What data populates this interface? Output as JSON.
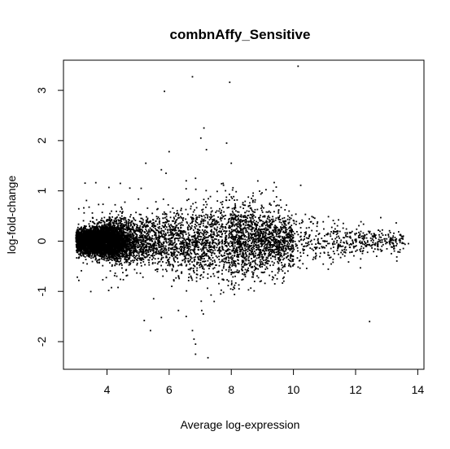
{
  "chart_data": {
    "type": "scatter",
    "title": "combnAffy_Sensitive",
    "xlabel": "Average log-expression",
    "ylabel": "log-fold-change",
    "xlim": [
      2.6,
      14.2
    ],
    "ylim": [
      -2.55,
      3.6
    ],
    "xticks": [
      4,
      6,
      8,
      10,
      12,
      14
    ],
    "yticks": [
      -2,
      -1,
      0,
      1,
      2,
      3
    ],
    "grid": false,
    "legend": "none",
    "point_color": "#000000",
    "notable_points": [
      {
        "x": 10.15,
        "y": 3.48
      },
      {
        "x": 6.75,
        "y": 3.27
      },
      {
        "x": 7.95,
        "y": 3.16
      },
      {
        "x": 5.85,
        "y": 2.98
      },
      {
        "x": 7.12,
        "y": 2.25
      },
      {
        "x": 7.02,
        "y": 2.05
      },
      {
        "x": 7.85,
        "y": 1.95
      },
      {
        "x": 7.2,
        "y": 1.82
      },
      {
        "x": 6.0,
        "y": 1.78
      },
      {
        "x": 8.0,
        "y": 1.55
      },
      {
        "x": 5.25,
        "y": 1.55
      },
      {
        "x": 5.75,
        "y": 1.42
      },
      {
        "x": 5.9,
        "y": 1.35
      },
      {
        "x": 6.85,
        "y": 1.25
      },
      {
        "x": 6.55,
        "y": 1.2
      },
      {
        "x": 5.1,
        "y": 1.05
      },
      {
        "x": 9.35,
        "y": 1.0
      },
      {
        "x": 13.7,
        "y": -0.05
      },
      {
        "x": 12.45,
        "y": -1.6
      },
      {
        "x": 5.2,
        "y": -1.58
      },
      {
        "x": 5.4,
        "y": -1.78
      },
      {
        "x": 5.75,
        "y": -1.52
      },
      {
        "x": 6.3,
        "y": -1.38
      },
      {
        "x": 6.55,
        "y": -1.5
      },
      {
        "x": 6.75,
        "y": -1.78
      },
      {
        "x": 6.8,
        "y": -1.95
      },
      {
        "x": 6.85,
        "y": -2.05
      },
      {
        "x": 6.85,
        "y": -2.25
      },
      {
        "x": 7.25,
        "y": -2.32
      },
      {
        "x": 7.1,
        "y": -1.45
      },
      {
        "x": 7.05,
        "y": -1.38
      },
      {
        "x": 7.45,
        "y": -1.2
      },
      {
        "x": 7.75,
        "y": -1.02
      },
      {
        "x": 8.25,
        "y": -0.95
      },
      {
        "x": 9.4,
        "y": -0.85
      }
    ],
    "bulk_distribution": {
      "n_points": 9000,
      "x_min": 3.0,
      "x_max": 13.6,
      "x_mode": 3.6,
      "y_center": 0.0,
      "y_spread_at_low_x": 0.12,
      "y_spread_at_mid_x": 0.38,
      "y_spread_at_high_x": 0.12
    }
  }
}
